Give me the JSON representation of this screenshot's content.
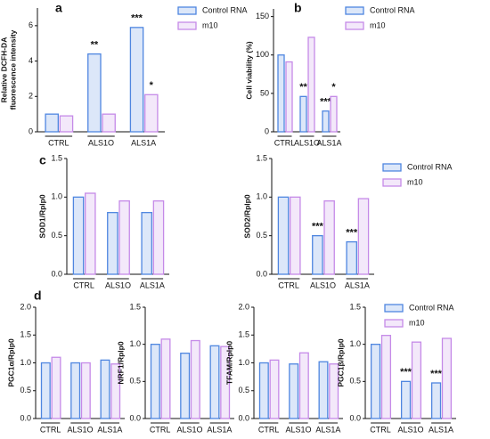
{
  "panel_labels": [
    "a",
    "b",
    "c",
    "d"
  ],
  "chart_data": [
    {
      "type": "bar",
      "ylabel": [
        "Relative DCFH-DA",
        "fluorescence intensity"
      ],
      "categories": [
        "CTRL",
        "ALS1O",
        "ALS1A"
      ],
      "series": [
        {
          "name": "Control RNA",
          "color": "#4f86e0",
          "values": [
            1.0,
            4.4,
            5.9
          ],
          "significance": [
            null,
            "**",
            "***"
          ]
        },
        {
          "name": "m10",
          "color": "#c58ae8",
          "values": [
            0.9,
            1.0,
            2.1
          ],
          "significance": [
            null,
            null,
            "*"
          ]
        }
      ],
      "ylim": [
        0,
        7
      ],
      "yticks": [
        0,
        2,
        4,
        6
      ],
      "legend": "upper right"
    },
    {
      "type": "bar",
      "ylabel": [
        "Cell viability (%)"
      ],
      "categories": [
        "CTRL",
        "ALS1O",
        "ALS1A"
      ],
      "series": [
        {
          "name": "Control RNA",
          "color": "#4f86e0",
          "values": [
            100,
            46,
            27
          ],
          "significance": [
            null,
            "**",
            "***"
          ]
        },
        {
          "name": "m10",
          "color": "#c58ae8",
          "values": [
            91,
            123,
            46
          ],
          "significance": [
            null,
            null,
            "*"
          ]
        }
      ],
      "ylim": [
        0,
        160
      ],
      "yticks": [
        0,
        50,
        100,
        150
      ],
      "legend": "upper right"
    },
    {
      "type": "bar",
      "ylabel": [
        "SOD1/Rplp0"
      ],
      "categories": [
        "CTRL",
        "ALS1O",
        "ALS1A"
      ],
      "series": [
        {
          "color": "#4f86e0",
          "values": [
            1.0,
            0.8,
            0.8
          ]
        },
        {
          "color": "#c58ae8",
          "values": [
            1.05,
            0.95,
            0.95
          ]
        }
      ],
      "ylim": [
        0,
        1.5
      ],
      "yticks": [
        {
          "value": 0,
          "label": "0.0"
        },
        0.5,
        {
          "value": 1,
          "label": "1.0"
        },
        1.5
      ]
    },
    {
      "type": "bar",
      "ylabel": [
        "SOD2/Rplp0"
      ],
      "categories": [
        "CTRL",
        "ALS1O",
        "ALS1A"
      ],
      "series": [
        {
          "name": "Control RNA",
          "color": "#4f86e0",
          "values": [
            1.0,
            0.5,
            0.42
          ],
          "significance": [
            null,
            "***",
            "***"
          ]
        },
        {
          "name": "m10",
          "color": "#c58ae8",
          "values": [
            1.0,
            0.95,
            0.98
          ]
        }
      ],
      "ylim": [
        0,
        1.5
      ],
      "yticks": [
        {
          "value": 0,
          "label": "0.0"
        },
        0.5,
        {
          "value": 1,
          "label": "1.0"
        },
        1.5
      ],
      "legend": "upper right"
    },
    {
      "type": "bar",
      "ylabel": [
        "PGC1α/Rplp0"
      ],
      "categories": [
        "CTRL",
        "ALS1O",
        "ALS1A"
      ],
      "series": [
        {
          "color": "#4f86e0",
          "values": [
            1.0,
            1.0,
            1.05
          ]
        },
        {
          "color": "#c58ae8",
          "values": [
            1.1,
            1.0,
            0.98
          ]
        }
      ],
      "ylim": [
        0,
        2
      ],
      "yticks": [
        {
          "value": 0,
          "label": "0.0"
        },
        0.5,
        {
          "value": 1,
          "label": "1.0"
        },
        1.5,
        {
          "value": 2,
          "label": "2.0"
        }
      ]
    },
    {
      "type": "bar",
      "ylabel": [
        "NRF1/Rplp0"
      ],
      "categories": [
        "CTRL",
        "ALS1O",
        "ALS1A"
      ],
      "series": [
        {
          "color": "#4f86e0",
          "values": [
            1.0,
            0.88,
            0.98
          ]
        },
        {
          "color": "#c58ae8",
          "values": [
            1.07,
            1.05,
            0.97
          ]
        }
      ],
      "ylim": [
        0,
        1.5
      ],
      "yticks": [
        {
          "value": 0,
          "label": "0.0"
        },
        0.5,
        {
          "value": 1,
          "label": "1.0"
        },
        1.5
      ]
    },
    {
      "type": "bar",
      "ylabel": [
        "TFAM/Rplp0"
      ],
      "categories": [
        "CTRL",
        "ALS1O",
        "ALS1A"
      ],
      "series": [
        {
          "color": "#4f86e0",
          "values": [
            1.0,
            0.98,
            1.02
          ]
        },
        {
          "color": "#c58ae8",
          "values": [
            1.05,
            1.18,
            0.98
          ]
        }
      ],
      "ylim": [
        0,
        2
      ],
      "yticks": [
        {
          "value": 0,
          "label": "0.0"
        },
        0.5,
        {
          "value": 1,
          "label": "1.0"
        },
        1.5,
        {
          "value": 2,
          "label": "2.0"
        }
      ]
    },
    {
      "type": "bar",
      "ylabel": [
        "PGC1β/Rplp0"
      ],
      "categories": [
        "CTRL",
        "ALS1O",
        "ALS1A"
      ],
      "series": [
        {
          "name": "Control RNA",
          "color": "#4f86e0",
          "values": [
            1.0,
            0.5,
            0.48
          ],
          "significance": [
            null,
            "***",
            "***"
          ]
        },
        {
          "name": "m10",
          "color": "#c58ae8",
          "values": [
            1.12,
            1.03,
            1.08
          ]
        }
      ],
      "ylim": [
        0,
        1.5
      ],
      "yticks": [
        {
          "value": 0,
          "label": "0.0"
        },
        0.5,
        {
          "value": 1,
          "label": "1.0"
        },
        1.5
      ],
      "legend": "upper right"
    }
  ]
}
